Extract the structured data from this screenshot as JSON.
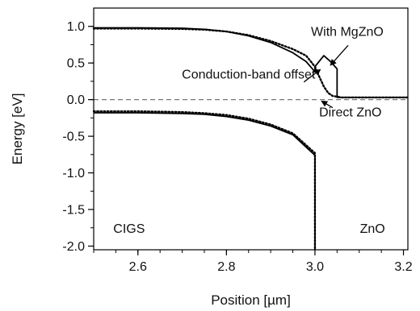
{
  "chart_data": {
    "type": "line",
    "title": "",
    "xlabel": "Position [µm]",
    "ylabel": "Energy [eV]",
    "xlim": [
      2.5,
      3.21
    ],
    "ylim": [
      -2.05,
      1.25
    ],
    "xticks": [
      2.6,
      2.8,
      3.0,
      3.2
    ],
    "xtick_labels": [
      "2.6",
      "2.8",
      "3.0",
      "3.2"
    ],
    "yticks": [
      1.0,
      0.5,
      0.0,
      -0.5,
      -1.0,
      -1.5,
      -2.0
    ],
    "ytick_labels": [
      "1.0",
      "0.5",
      "0.0",
      "-0.5",
      "-1.0",
      "-1.5",
      "-2.0"
    ],
    "zero_line": {
      "y": 0.0,
      "style": "dashed",
      "color": "#777777"
    },
    "series": [
      {
        "style": "solid",
        "color": "#000000",
        "points": [
          [
            2.5,
            0.98
          ],
          [
            2.6,
            0.98
          ],
          [
            2.7,
            0.975
          ],
          [
            2.75,
            0.96
          ],
          [
            2.8,
            0.93
          ],
          [
            2.85,
            0.87
          ],
          [
            2.9,
            0.78
          ],
          [
            2.95,
            0.64
          ],
          [
            2.98,
            0.52
          ],
          [
            3.0,
            0.38
          ],
          [
            3.0,
            0.45
          ],
          [
            3.02,
            0.6
          ],
          [
            3.035,
            0.52
          ],
          [
            3.05,
            0.42
          ],
          [
            3.05,
            0.03
          ],
          [
            3.21,
            0.03
          ]
        ]
      },
      {
        "style": "dotted",
        "color": "#000000",
        "points": [
          [
            2.5,
            0.97
          ],
          [
            2.6,
            0.97
          ],
          [
            2.7,
            0.965
          ],
          [
            2.75,
            0.955
          ],
          [
            2.8,
            0.93
          ],
          [
            2.85,
            0.88
          ],
          [
            2.9,
            0.8
          ],
          [
            2.95,
            0.69
          ],
          [
            2.98,
            0.6
          ],
          [
            3.0,
            0.45
          ],
          [
            3.01,
            0.31
          ],
          [
            3.02,
            0.18
          ],
          [
            3.03,
            0.09
          ],
          [
            3.04,
            0.05
          ],
          [
            3.06,
            0.03
          ],
          [
            3.21,
            0.03
          ]
        ]
      },
      {
        "style": "solid",
        "color": "#000000",
        "points": [
          [
            2.5,
            -0.18
          ],
          [
            2.6,
            -0.18
          ],
          [
            2.7,
            -0.19
          ],
          [
            2.75,
            -0.2
          ],
          [
            2.8,
            -0.23
          ],
          [
            2.85,
            -0.28
          ],
          [
            2.9,
            -0.36
          ],
          [
            2.95,
            -0.48
          ],
          [
            3.0,
            -0.76
          ],
          [
            3.0,
            -2.05
          ]
        ]
      },
      {
        "style": "dotted",
        "color": "#000000",
        "points": [
          [
            2.5,
            -0.16
          ],
          [
            2.6,
            -0.16
          ],
          [
            2.7,
            -0.17
          ],
          [
            2.75,
            -0.185
          ],
          [
            2.8,
            -0.21
          ],
          [
            2.85,
            -0.26
          ],
          [
            2.9,
            -0.34
          ],
          [
            2.95,
            -0.46
          ],
          [
            3.0,
            -0.73
          ],
          [
            3.0,
            -2.05
          ]
        ]
      }
    ],
    "annotations": [
      {
        "text": "With MgZnO",
        "x": 3.073,
        "y": 0.87,
        "anchor": "middle"
      },
      {
        "text": "Conduction-band offset",
        "x": 2.85,
        "y": 0.29,
        "anchor": "middle"
      },
      {
        "text": "Direct ZnO",
        "x": 3.08,
        "y": -0.23,
        "anchor": "middle"
      },
      {
        "text": "CIGS",
        "x": 2.58,
        "y": -1.82,
        "anchor": "middle"
      },
      {
        "text": "ZnO",
        "x": 3.13,
        "y": -1.82,
        "anchor": "middle"
      }
    ],
    "arrows": [
      {
        "from": [
          3.075,
          0.74
        ],
        "to": [
          3.035,
          0.47
        ]
      },
      {
        "from": [
          2.975,
          0.24
        ],
        "to": [
          3.012,
          0.41
        ]
      },
      {
        "from": [
          3.04,
          -0.11
        ],
        "to": [
          3.015,
          -0.02
        ]
      }
    ]
  }
}
